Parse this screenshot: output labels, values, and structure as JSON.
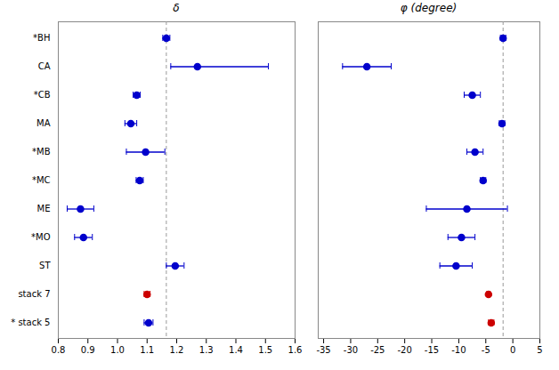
{
  "chart_data": [
    {
      "type": "errorbar",
      "orientation": "horizontal",
      "title": "δ",
      "categories": [
        "*BH",
        "CA",
        "*CB",
        "MA",
        "*MB",
        "*MC",
        "ME",
        "*MO",
        "ST",
        "stack 7",
        "* stack 5"
      ],
      "values": [
        1.165,
        1.27,
        1.065,
        1.045,
        1.095,
        1.075,
        0.875,
        0.885,
        1.195,
        1.1,
        1.105
      ],
      "error_minus": [
        0.012,
        0.09,
        0.012,
        0.02,
        0.065,
        0.012,
        0.045,
        0.03,
        0.03,
        0.01,
        0.015
      ],
      "error_plus": [
        0.012,
        0.24,
        0.012,
        0.02,
        0.065,
        0.012,
        0.045,
        0.03,
        0.03,
        0.01,
        0.015
      ],
      "colors": [
        "#0000cc",
        "#0000cc",
        "#0000cc",
        "#0000cc",
        "#0000cc",
        "#0000cc",
        "#0000cc",
        "#0000cc",
        "#0000cc",
        "#cc0000",
        "#0000cc"
      ],
      "reference_line": 1.165,
      "xlim": [
        0.8,
        1.6
      ],
      "xticks": [
        0.8,
        0.9,
        {
          "value": 1.0,
          "label": "1.0"
        },
        1.1,
        1.2,
        1.3,
        1.4,
        1.5,
        1.6
      ],
      "grid": false
    },
    {
      "type": "errorbar",
      "orientation": "horizontal",
      "title": "φ (degree)",
      "categories": [
        "*BH",
        "CA",
        "*CB",
        "MA",
        "*MB",
        "*MC",
        "ME",
        "*MO",
        "ST",
        "stack 7",
        "* stack 5"
      ],
      "values": [
        -1.8,
        -27.0,
        -7.5,
        -2.0,
        -7.0,
        -5.5,
        -8.5,
        -9.5,
        -10.5,
        -4.5,
        -4.0
      ],
      "error_minus": [
        0.5,
        4.5,
        1.5,
        0.5,
        1.5,
        0.5,
        7.5,
        2.5,
        3.0,
        0.3,
        0.5
      ],
      "error_plus": [
        0.5,
        4.5,
        1.5,
        0.5,
        1.5,
        0.5,
        7.5,
        2.5,
        3.0,
        0.3,
        0.5
      ],
      "colors": [
        "#0000cc",
        "#0000cc",
        "#0000cc",
        "#0000cc",
        "#0000cc",
        "#0000cc",
        "#0000cc",
        "#0000cc",
        "#0000cc",
        "#cc0000",
        "#cc0000"
      ],
      "reference_line": -1.8,
      "xlim": [
        -36,
        5
      ],
      "xticks": [
        -35,
        -30,
        -25,
        -20,
        -15,
        -10,
        -5,
        0,
        5
      ],
      "tick_labels": "x",
      "grid": false
    }
  ]
}
